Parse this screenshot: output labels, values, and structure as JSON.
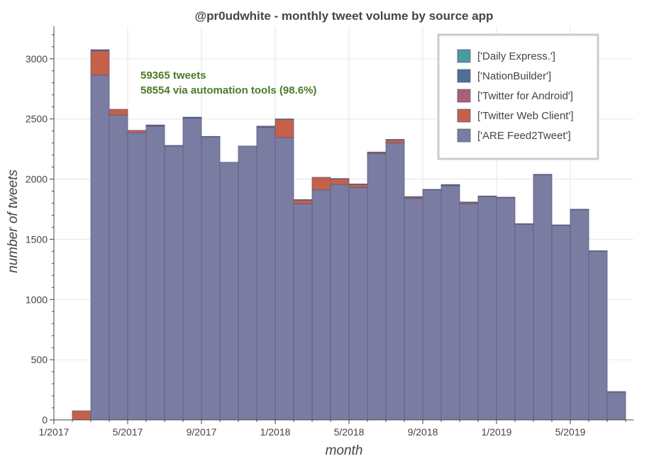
{
  "chart_data": {
    "type": "bar",
    "stacked": true,
    "title": "@pr0udwhite - monthly tweet volume by source app",
    "xlabel": "month",
    "ylabel": "number of tweets",
    "ylim": [
      0,
      3270
    ],
    "y_ticks": [
      0,
      500,
      1000,
      1500,
      2000,
      2500,
      3000
    ],
    "x_ticks": [
      "1/2017",
      "5/2017",
      "9/2017",
      "1/2018",
      "5/2018",
      "9/2018",
      "1/2019",
      "5/2019"
    ],
    "grid": true,
    "legend_position": "top-right",
    "categories": [
      "2/2017",
      "3/2017",
      "4/2017",
      "5/2017",
      "6/2017",
      "7/2017",
      "8/2017",
      "9/2017",
      "10/2017",
      "11/2017",
      "12/2017",
      "1/2018",
      "2/2018",
      "3/2018",
      "4/2018",
      "5/2018",
      "6/2018",
      "7/2018",
      "8/2018",
      "9/2018",
      "10/2018",
      "11/2018",
      "12/2018",
      "1/2019",
      "2/2019",
      "3/2019",
      "4/2019",
      "5/2019",
      "6/2019",
      "7/2019"
    ],
    "series": [
      {
        "name": "['ARE Feed2Tweet']",
        "color": "#7a7ca1",
        "values": [
          0,
          2865,
          2530,
          2385,
          2440,
          2275,
          2505,
          2350,
          2140,
          2275,
          2430,
          2345,
          1795,
          1910,
          1955,
          1930,
          2210,
          2300,
          1840,
          1910,
          1945,
          1795,
          1855,
          1845,
          1625,
          2035,
          1615,
          1745,
          1400,
          230
        ]
      },
      {
        "name": "['Twitter Web Client']",
        "color": "#c56148",
        "values": [
          75,
          200,
          50,
          20,
          5,
          0,
          5,
          0,
          0,
          0,
          5,
          150,
          30,
          105,
          45,
          25,
          10,
          25,
          10,
          0,
          5,
          10,
          0,
          0,
          0,
          0,
          0,
          0,
          0,
          0
        ]
      },
      {
        "name": "['Twitter for Android']",
        "color": "#a8607a",
        "values": [
          0,
          5,
          0,
          0,
          0,
          0,
          0,
          0,
          0,
          0,
          0,
          0,
          0,
          0,
          0,
          0,
          0,
          0,
          0,
          0,
          0,
          0,
          0,
          0,
          0,
          0,
          0,
          0,
          0,
          0
        ]
      },
      {
        "name": "['NationBuilder']",
        "color": "#4e6f94",
        "values": [
          0,
          5,
          0,
          0,
          5,
          5,
          5,
          5,
          0,
          0,
          5,
          5,
          5,
          0,
          5,
          5,
          5,
          5,
          5,
          5,
          5,
          5,
          5,
          5,
          5,
          5,
          5,
          5,
          5,
          5
        ]
      },
      {
        "name": "['Daily Express.']",
        "color": "#4a9aa0",
        "values": [
          0,
          0,
          0,
          0,
          0,
          0,
          0,
          0,
          0,
          0,
          0,
          0,
          0,
          0,
          0,
          0,
          0,
          0,
          0,
          0,
          0,
          0,
          0,
          0,
          0,
          0,
          0,
          0,
          0,
          0
        ]
      }
    ],
    "legend": [
      {
        "label": "['Daily Express.']",
        "color": "#4a9aa0"
      },
      {
        "label": "['NationBuilder']",
        "color": "#4e6f94"
      },
      {
        "label": "['Twitter for Android']",
        "color": "#a8607a"
      },
      {
        "label": "['Twitter Web Client']",
        "color": "#c56148"
      },
      {
        "label": "['ARE Feed2Tweet']",
        "color": "#7a7ca1"
      }
    ],
    "annotations": [
      "59365 tweets",
      "58554 via automation tools (98.6%)"
    ],
    "annotation_color": "#4a7a2a"
  }
}
